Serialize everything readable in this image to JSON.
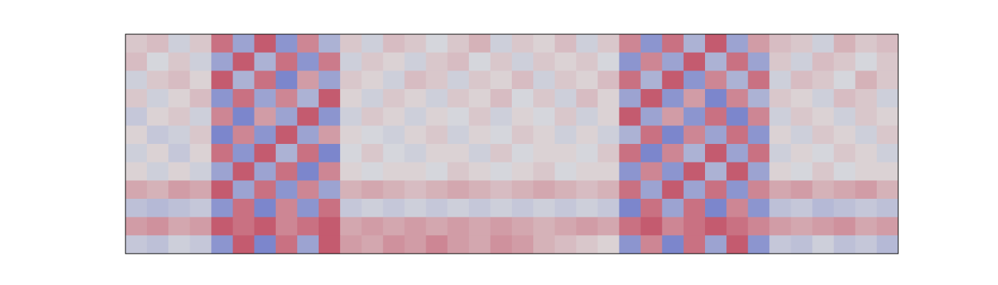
{
  "chart_data": {
    "type": "heatmap",
    "clim": [
      -1,
      1
    ],
    "colors": [
      "#3b4cc0",
      "#dddddd",
      "#b40426"
    ],
    "values": [
      [
        0.1,
        0.15,
        -0.1,
        0.1,
        0.5,
        -0.4,
        0.6,
        -0.5,
        0.4,
        -0.3,
        0.1,
        -0.1,
        0.15,
        0.1,
        -0.05,
        0.1,
        0.2,
        -0.1,
        0.1,
        0.05,
        0.15,
        -0.1,
        0.1,
        0.4,
        -0.5,
        0.5,
        -0.3,
        0.6,
        -0.4,
        0.3,
        0.15,
        0.1,
        -0.1,
        0.2,
        0.1,
        0.15
      ],
      [
        0.15,
        -0.05,
        0.1,
        -0.1,
        -0.4,
        0.6,
        -0.3,
        0.5,
        -0.5,
        0.45,
        -0.1,
        0.1,
        0.05,
        -0.1,
        0.1,
        0.15,
        -0.05,
        0.1,
        -0.1,
        0.1,
        0.05,
        0.1,
        -0.05,
        -0.5,
        0.4,
        -0.4,
        0.6,
        -0.3,
        0.5,
        -0.4,
        0.1,
        -0.1,
        0.15,
        0.1,
        -0.05,
        0.1
      ],
      [
        -0.1,
        0.1,
        0.15,
        0.05,
        0.6,
        -0.3,
        0.5,
        -0.6,
        0.3,
        -0.4,
        0.1,
        0.05,
        -0.1,
        0.15,
        0.1,
        -0.1,
        0.1,
        0.05,
        0.15,
        -0.1,
        0.1,
        0.05,
        0.15,
        0.5,
        -0.3,
        0.6,
        -0.5,
        0.4,
        -0.3,
        0.5,
        -0.1,
        0.15,
        0.1,
        -0.05,
        0.2,
        0.1
      ],
      [
        0.1,
        -0.1,
        0.05,
        0.15,
        -0.5,
        0.5,
        -0.4,
        0.4,
        -0.3,
        0.6,
        0.05,
        -0.1,
        0.1,
        0.05,
        -0.1,
        0.1,
        0.05,
        0.15,
        -0.05,
        0.1,
        -0.1,
        0.15,
        0.05,
        -0.4,
        0.6,
        -0.5,
        0.3,
        -0.6,
        0.4,
        -0.3,
        0.1,
        0.05,
        -0.1,
        0.15,
        0.1,
        -0.1
      ],
      [
        -0.15,
        0.05,
        0.1,
        -0.1,
        0.4,
        -0.6,
        0.3,
        -0.4,
        0.6,
        -0.5,
        -0.1,
        0.1,
        0.05,
        -0.1,
        0.05,
        -0.05,
        0.1,
        -0.1,
        0.05,
        -0.05,
        0.1,
        -0.1,
        0.05,
        0.6,
        -0.4,
        0.3,
        -0.5,
        0.5,
        -0.6,
        0.4,
        -0.1,
        0.1,
        0.05,
        -0.1,
        0.1,
        0.05
      ],
      [
        0.05,
        -0.15,
        -0.1,
        0.1,
        -0.6,
        0.4,
        -0.5,
        0.6,
        -0.4,
        0.3,
        0.05,
        -0.05,
        -0.1,
        0.05,
        0.1,
        -0.1,
        0.05,
        -0.05,
        0.1,
        0.05,
        -0.1,
        0.05,
        -0.1,
        -0.3,
        0.5,
        -0.6,
        0.4,
        -0.4,
        0.5,
        -0.5,
        0.05,
        -0.1,
        0.1,
        0.05,
        -0.1,
        0.1
      ],
      [
        -0.1,
        0.05,
        -0.15,
        0.05,
        0.5,
        -0.5,
        0.6,
        -0.3,
        0.5,
        -0.6,
        -0.05,
        0.1,
        -0.05,
        -0.1,
        0.05,
        0.05,
        -0.1,
        0.1,
        -0.05,
        0.05,
        0.05,
        -0.05,
        0.1,
        0.5,
        -0.6,
        0.4,
        -0.3,
        0.6,
        -0.4,
        0.5,
        -0.1,
        0.05,
        -0.05,
        0.1,
        0.05,
        -0.1
      ],
      [
        0.05,
        -0.1,
        0.05,
        -0.1,
        -0.4,
        0.6,
        -0.4,
        0.5,
        -0.6,
        0.4,
        0.05,
        -0.05,
        0.05,
        0.05,
        -0.05,
        0.1,
        0.05,
        -0.05,
        0.05,
        0.1,
        -0.05,
        0.05,
        0.05,
        -0.5,
        0.4,
        -0.5,
        0.6,
        -0.3,
        0.6,
        -0.4,
        0.05,
        -0.05,
        0.1,
        -0.05,
        0.05,
        0.05
      ],
      [
        0.25,
        0.2,
        0.3,
        0.25,
        0.6,
        -0.4,
        0.5,
        -0.5,
        0.4,
        -0.4,
        0.2,
        0.25,
        0.2,
        0.15,
        0.2,
        0.25,
        0.2,
        0.15,
        0.2,
        0.25,
        0.2,
        0.15,
        0.2,
        0.5,
        -0.4,
        0.6,
        -0.4,
        0.5,
        -0.5,
        0.4,
        0.25,
        0.3,
        0.2,
        0.25,
        0.3,
        0.2
      ],
      [
        -0.2,
        -0.25,
        -0.2,
        -0.15,
        -0.5,
        0.5,
        -0.6,
        0.4,
        -0.5,
        0.5,
        -0.15,
        -0.1,
        -0.15,
        -0.1,
        -0.15,
        -0.1,
        -0.15,
        -0.1,
        -0.15,
        -0.1,
        -0.15,
        -0.1,
        -0.15,
        -0.6,
        0.5,
        -0.4,
        0.5,
        -0.6,
        0.4,
        -0.5,
        -0.2,
        -0.15,
        -0.25,
        -0.2,
        -0.15,
        -0.2
      ],
      [
        0.3,
        0.35,
        0.25,
        0.3,
        0.6,
        0.5,
        0.6,
        0.4,
        0.5,
        0.6,
        0.25,
        0.3,
        0.25,
        0.3,
        0.25,
        0.3,
        0.25,
        0.3,
        0.25,
        0.2,
        0.25,
        0.3,
        0.25,
        0.5,
        0.6,
        0.4,
        0.5,
        0.6,
        0.5,
        0.4,
        0.3,
        0.25,
        0.3,
        0.35,
        0.25,
        0.3
      ],
      [
        -0.15,
        -0.2,
        -0.1,
        -0.15,
        -0.5,
        0.6,
        -0.6,
        0.5,
        -0.4,
        0.6,
        0.3,
        0.25,
        0.35,
        0.3,
        0.4,
        0.3,
        0.25,
        0.35,
        0.3,
        0.2,
        0.15,
        0.1,
        0.05,
        -0.5,
        0.4,
        -0.6,
        0.5,
        -0.4,
        0.6,
        -0.5,
        -0.15,
        -0.2,
        -0.1,
        -0.2,
        -0.15,
        -0.25
      ]
    ]
  }
}
